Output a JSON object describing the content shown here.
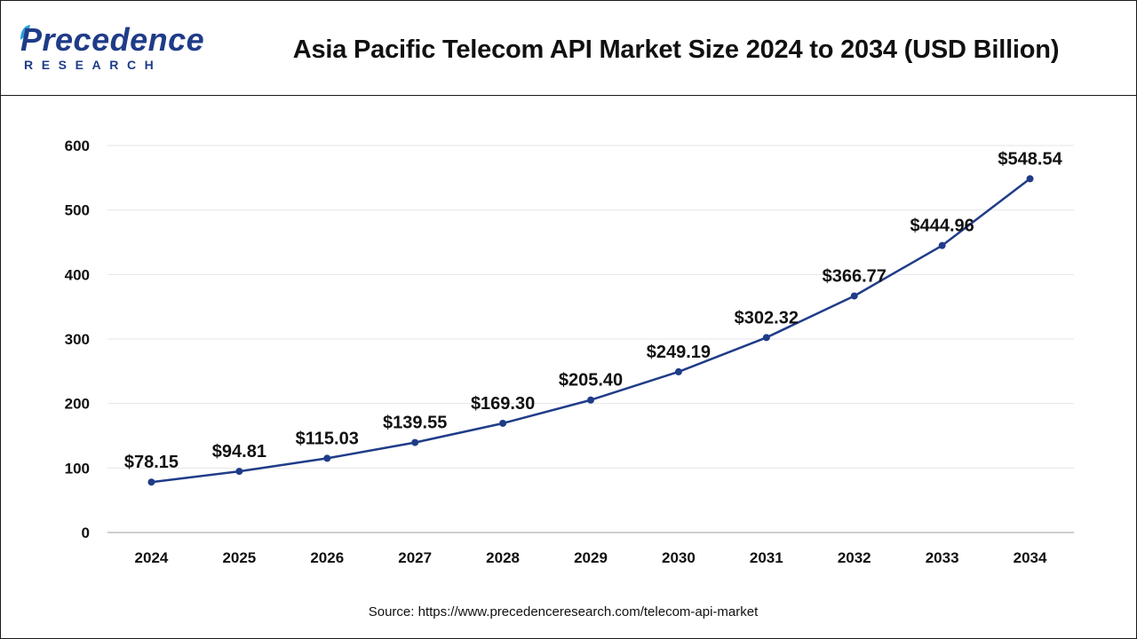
{
  "brand": {
    "logo_top": "Precedence",
    "logo_bottom": "RESEARCH"
  },
  "source": "Source: https://www.precedenceresearch.com/telecom-api-market",
  "colors": {
    "line": "#1f3c88",
    "grid": "#e6e6e6",
    "axis": "#bfbfbf",
    "brand": "#1f3c88"
  },
  "chart_data": {
    "type": "line",
    "title": "Asia Pacific Telecom API Market Size 2024 to 2034 (USD Billion)",
    "xlabel": "",
    "ylabel": "",
    "categories": [
      "2024",
      "2025",
      "2026",
      "2027",
      "2028",
      "2029",
      "2030",
      "2031",
      "2032",
      "2033",
      "2034"
    ],
    "series": [
      {
        "values": [
          78.15,
          94.81,
          115.03,
          139.55,
          169.3,
          205.4,
          249.19,
          302.32,
          366.77,
          444.96,
          548.54
        ]
      }
    ],
    "data_labels": [
      "$78.15",
      "$94.81",
      "$115.03",
      "$139.55",
      "$169.30",
      "$205.40",
      "$249.19",
      "$302.32",
      "$366.77",
      "$444.96",
      "$548.54"
    ],
    "ylim": [
      0,
      600
    ],
    "yticks": [
      0,
      100,
      200,
      300,
      400,
      500,
      600
    ],
    "grid": true,
    "legend": "none"
  }
}
